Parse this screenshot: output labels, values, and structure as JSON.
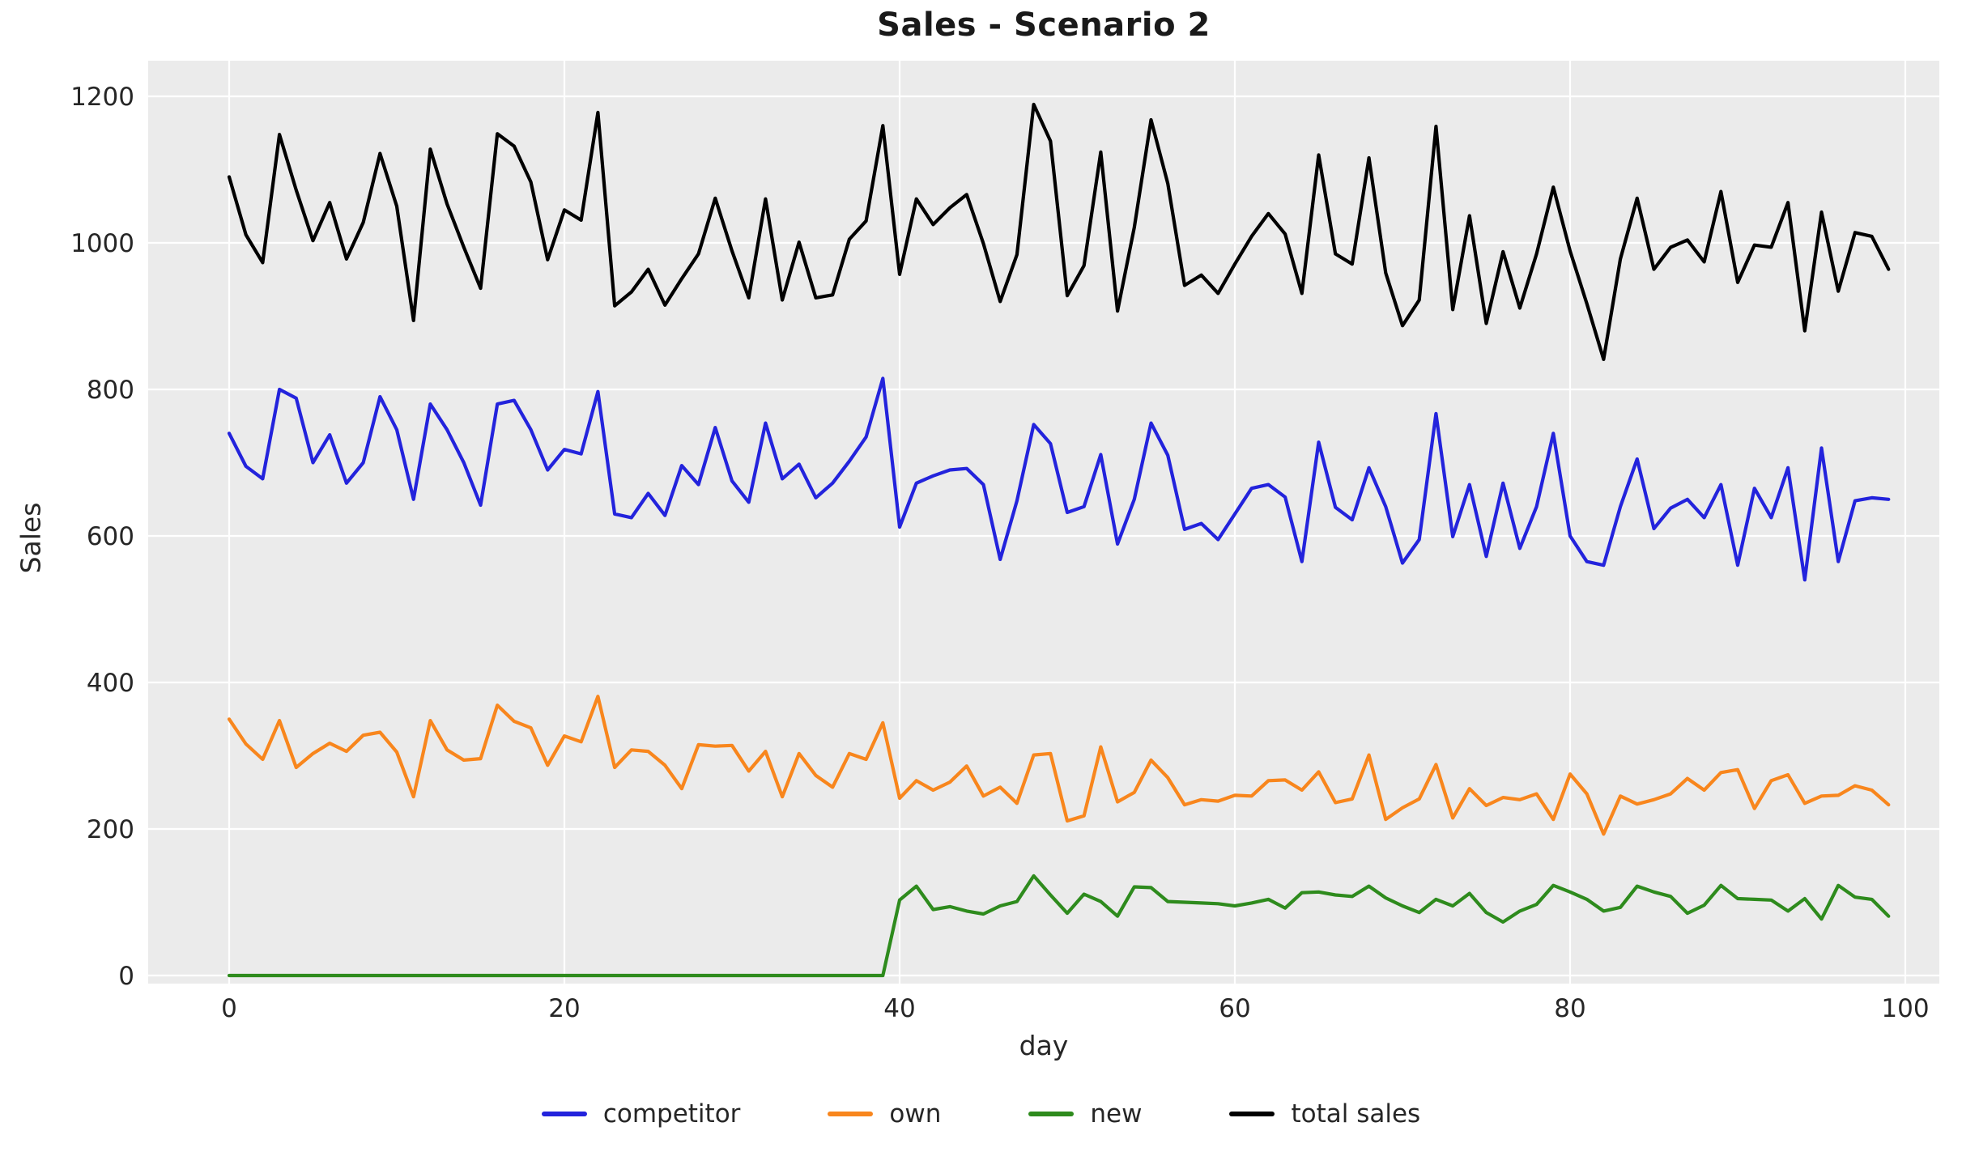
{
  "title": "Sales - Scenario 2",
  "chart_data": {
    "type": "line",
    "title": "Sales - Scenario 2",
    "xlabel": "day",
    "ylabel": "Sales",
    "x_ticks": [
      0,
      20,
      40,
      60,
      80,
      100
    ],
    "y_ticks": [
      0,
      200,
      400,
      600,
      800,
      1000,
      1200
    ],
    "xlim": [
      -5,
      105
    ],
    "ylim": [
      -10,
      1250
    ],
    "grid": true,
    "legend_position": "bottom",
    "plot_background": "#ebebeb",
    "grid_color": "#ffffff",
    "text_color": "#262626",
    "x": [
      0,
      1,
      2,
      3,
      4,
      5,
      6,
      7,
      8,
      9,
      10,
      11,
      12,
      13,
      14,
      15,
      16,
      17,
      18,
      19,
      20,
      21,
      22,
      23,
      24,
      25,
      26,
      27,
      28,
      29,
      30,
      31,
      32,
      33,
      34,
      35,
      36,
      37,
      38,
      39,
      40,
      41,
      42,
      43,
      44,
      45,
      46,
      47,
      48,
      49,
      50,
      51,
      52,
      53,
      54,
      55,
      56,
      57,
      58,
      59,
      60,
      61,
      62,
      63,
      64,
      65,
      66,
      67,
      68,
      69,
      70,
      71,
      72,
      73,
      74,
      75,
      76,
      77,
      78,
      79,
      80,
      81,
      82,
      83,
      84,
      85,
      86,
      87,
      88,
      89,
      90,
      91,
      92,
      93,
      94,
      95,
      96,
      97,
      98,
      99
    ],
    "series": [
      {
        "name": "competitor",
        "color": "#2323dc",
        "values": [
          740,
          695,
          678,
          800,
          788,
          700,
          738,
          672,
          700,
          790,
          745,
          650,
          780,
          745,
          700,
          642,
          780,
          785,
          745,
          690,
          718,
          712,
          797,
          630,
          625,
          658,
          628,
          696,
          670,
          748,
          675,
          646,
          754,
          678,
          698,
          652,
          672,
          702,
          735,
          815,
          612,
          672,
          682,
          690,
          692,
          670,
          568,
          648,
          752,
          726,
          632,
          640,
          711,
          589,
          650,
          754,
          710,
          609,
          617,
          595,
          630,
          665,
          670,
          653,
          565,
          728,
          639,
          622,
          693,
          640,
          563,
          595,
          767,
          599,
          670,
          572,
          672,
          583,
          640,
          740,
          600,
          565,
          560,
          640,
          705,
          610,
          638,
          650,
          625,
          670,
          560,
          665,
          625,
          693,
          540,
          720,
          565,
          648,
          652,
          650
        ]
      },
      {
        "name": "own",
        "color": "#f8861d",
        "values": [
          350,
          316,
          295,
          348,
          284,
          303,
          317,
          306,
          328,
          332,
          305,
          244,
          348,
          308,
          294,
          296,
          369,
          347,
          338,
          287,
          327,
          319,
          381,
          284,
          308,
          306,
          287,
          255,
          315,
          313,
          314,
          279,
          306,
          244,
          303,
          273,
          257,
          303,
          295,
          345,
          242,
          266,
          253,
          264,
          286,
          245,
          257,
          235,
          301,
          303,
          211,
          218,
          312,
          237,
          250,
          294,
          270,
          233,
          240,
          238,
          246,
          245,
          266,
          267,
          253,
          278,
          236,
          241,
          301,
          213,
          229,
          241,
          288,
          215,
          255,
          232,
          243,
          240,
          248,
          213,
          275,
          248,
          193,
          245,
          234,
          240,
          248,
          269,
          253,
          277,
          281,
          228,
          266,
          274,
          235,
          245,
          246,
          259,
          253,
          233
        ]
      },
      {
        "name": "new",
        "color": "#2e8b1d",
        "values": [
          0,
          0,
          0,
          0,
          0,
          0,
          0,
          0,
          0,
          0,
          0,
          0,
          0,
          0,
          0,
          0,
          0,
          0,
          0,
          0,
          0,
          0,
          0,
          0,
          0,
          0,
          0,
          0,
          0,
          0,
          0,
          0,
          0,
          0,
          0,
          0,
          0,
          0,
          0,
          0,
          103,
          122,
          90,
          94,
          88,
          84,
          95,
          101,
          136,
          110,
          85,
          111,
          101,
          81,
          121,
          120,
          101,
          100,
          99,
          98,
          95,
          99,
          104,
          92,
          113,
          114,
          110,
          108,
          122,
          106,
          95,
          86,
          104,
          95,
          112,
          86,
          73,
          88,
          97,
          123,
          114,
          104,
          88,
          93,
          122,
          114,
          108,
          85,
          96,
          123,
          105,
          104,
          103,
          88,
          105,
          77,
          123,
          107,
          104,
          81
        ]
      },
      {
        "name": "total sales",
        "color": "#000000",
        "values": [
          1090,
          1011,
          973,
          1148,
          1072,
          1003,
          1055,
          978,
          1028,
          1122,
          1050,
          894,
          1128,
          1053,
          994,
          938,
          1149,
          1132,
          1083,
          977,
          1045,
          1031,
          1178,
          914,
          933,
          964,
          915,
          951,
          985,
          1061,
          989,
          925,
          1060,
          922,
          1001,
          925,
          929,
          1005,
          1030,
          1160,
          957,
          1060,
          1025,
          1048,
          1066,
          999,
          920,
          984,
          1189,
          1139,
          928,
          969,
          1124,
          907,
          1021,
          1168,
          1081,
          942,
          956,
          931,
          971,
          1009,
          1040,
          1012,
          931,
          1120,
          985,
          971,
          1116,
          959,
          887,
          922,
          1159,
          909,
          1037,
          890,
          988,
          911,
          985,
          1076,
          989,
          917,
          841,
          978,
          1061,
          964,
          994,
          1004,
          974,
          1070,
          946,
          997,
          994,
          1055,
          880,
          1042,
          934,
          1014,
          1009,
          964
        ]
      }
    ]
  }
}
